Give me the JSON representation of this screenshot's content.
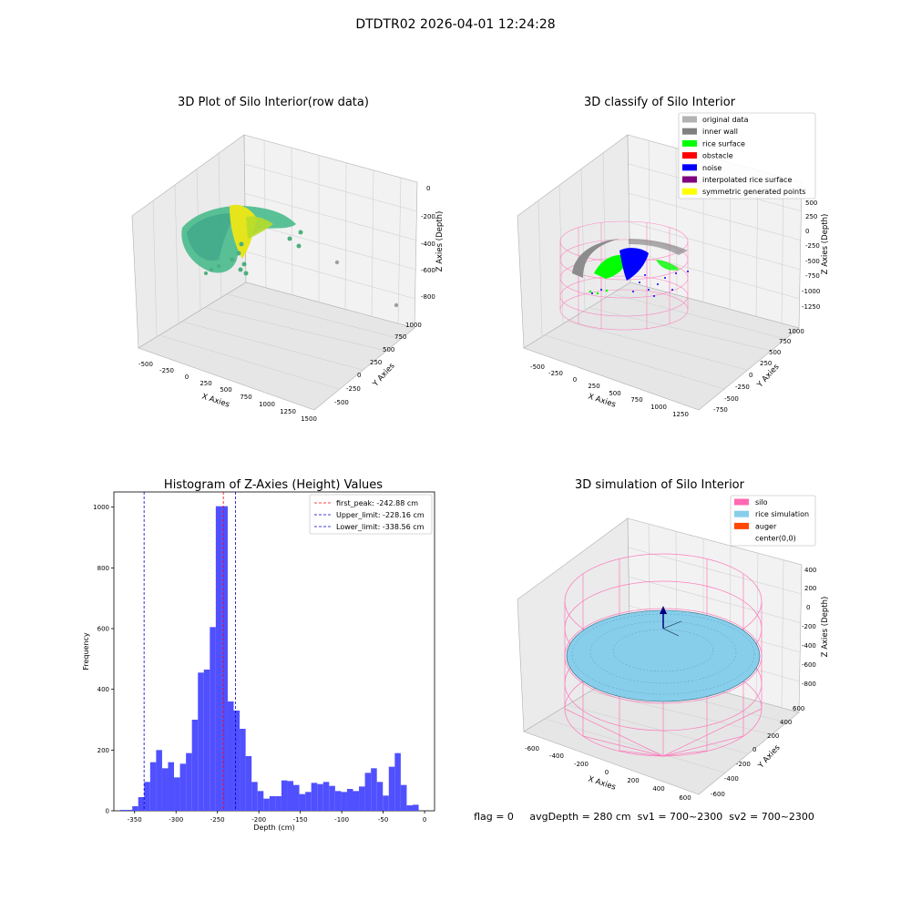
{
  "suptitle": "DTDTR02 2026-04-01 12:24:28",
  "colors": {
    "pane_light": "#f2f2f2",
    "pane_mid": "#e6e6e6",
    "pane_dark": "#ebebeb",
    "grid": "#d0d0d0",
    "hist_bar": "#4c4cff",
    "peak": "#ff0000",
    "limit": "#0000cc",
    "raw_yellow": "#e6e51c",
    "raw_green": "#2ca98a",
    "raw_teal": "#3b9b8c",
    "silo": "#ff69b4",
    "rice_sim": "#87ceeb",
    "auger": "#ff4500",
    "surface_gray": "#8c8c8c",
    "surface_green": "#00ff00",
    "noise_blue": "#0000ff"
  },
  "panels": {
    "raw": {
      "title": "3D Plot of Silo Interior(row data)",
      "x_label": "X Axies",
      "y_label": "Y Axies",
      "z_label": "Z Axies (Depth)",
      "x_ticks": [
        "-500",
        "-250",
        "0",
        "250",
        "500",
        "750",
        "1000",
        "1250",
        "1500"
      ],
      "y_ticks": [
        "-500",
        "-250",
        "0",
        "250",
        "500",
        "750",
        "1000"
      ],
      "z_ticks": [
        "0",
        "-200",
        "-400",
        "-600",
        "-800"
      ]
    },
    "classify": {
      "title": "3D classify of Silo Interior",
      "x_label": "X Axies",
      "y_label": "Y Axies",
      "z_label": "Z Axies (Depth)",
      "x_ticks": [
        "-500",
        "-250",
        "0",
        "250",
        "500",
        "750",
        "1000",
        "1250"
      ],
      "y_ticks": [
        "-750",
        "-500",
        "-250",
        "0",
        "250",
        "500",
        "750",
        "1000"
      ],
      "z_ticks": [
        "500",
        "250",
        "0",
        "-250",
        "-500",
        "-750",
        "-1000",
        "-1250"
      ],
      "legend": [
        {
          "label": "original data",
          "color": "#b3b3b3"
        },
        {
          "label": "inner wall",
          "color": "#808080"
        },
        {
          "label": "rice surface",
          "color": "#00ff00"
        },
        {
          "label": "obstacle",
          "color": "#ff0000"
        },
        {
          "label": "noise",
          "color": "#0000ff"
        },
        {
          "label": "interpolated rice surface",
          "color": "#800080"
        },
        {
          "label": "symmetric generated points",
          "color": "#ffff00"
        }
      ]
    },
    "simulation": {
      "title": "3D simulation of Silo Interior",
      "x_label": "X Axies",
      "y_label": "Y Axies",
      "z_label": "Z Axies (Depth)",
      "x_ticks": [
        "-600",
        "-400",
        "-200",
        "0",
        "200",
        "400",
        "600"
      ],
      "y_ticks": [
        "-600",
        "-400",
        "-200",
        "0",
        "200",
        "400",
        "600"
      ],
      "z_ticks": [
        "400",
        "200",
        "0",
        "-200",
        "-400",
        "-600",
        "-800"
      ],
      "legend": [
        {
          "label": "silo",
          "color": "#ff69b4"
        },
        {
          "label": "rice simulation",
          "color": "#87ceeb"
        },
        {
          "label": "auger",
          "color": "#ff4500"
        },
        {
          "label": "center(0,0)",
          "color": ""
        }
      ]
    }
  },
  "status_text": "flag = 0     avgDepth = 280 cm  sv1 = 700~2300  sv2 = 700~2300",
  "chart_data": {
    "type": "bar",
    "title": "Histogram of Z-Axies (Height) Values",
    "xlabel": "Depth (cm)",
    "ylabel": "Frequency",
    "xlim": [
      -375,
      12
    ],
    "ylim": [
      0,
      1050
    ],
    "x_ticks": [
      -350,
      -300,
      -250,
      -200,
      -150,
      -100,
      -50,
      0
    ],
    "y_ticks": [
      0,
      200,
      400,
      600,
      800,
      1000
    ],
    "bin_width": 7.2,
    "bin_start": -367.2,
    "values": [
      3,
      3,
      15,
      45,
      95,
      160,
      200,
      140,
      160,
      110,
      155,
      190,
      300,
      455,
      465,
      605,
      1003,
      1003,
      360,
      330,
      270,
      180,
      95,
      65,
      40,
      48,
      48,
      100,
      98,
      85,
      55,
      62,
      92,
      88,
      95,
      82,
      65,
      62,
      72,
      65,
      80,
      125,
      140,
      95,
      50,
      145,
      190,
      85,
      18,
      20
    ],
    "lines": [
      {
        "label": "first_peak: -242.88 cm",
        "x": -242.88,
        "color": "#ff0000"
      },
      {
        "label": "Upper_limit: -228.16 cm",
        "x": -228.16,
        "color": "#0000cc"
      },
      {
        "label": "Lower_limit: -338.56 cm",
        "x": -338.56,
        "color": "#0000cc"
      }
    ]
  }
}
